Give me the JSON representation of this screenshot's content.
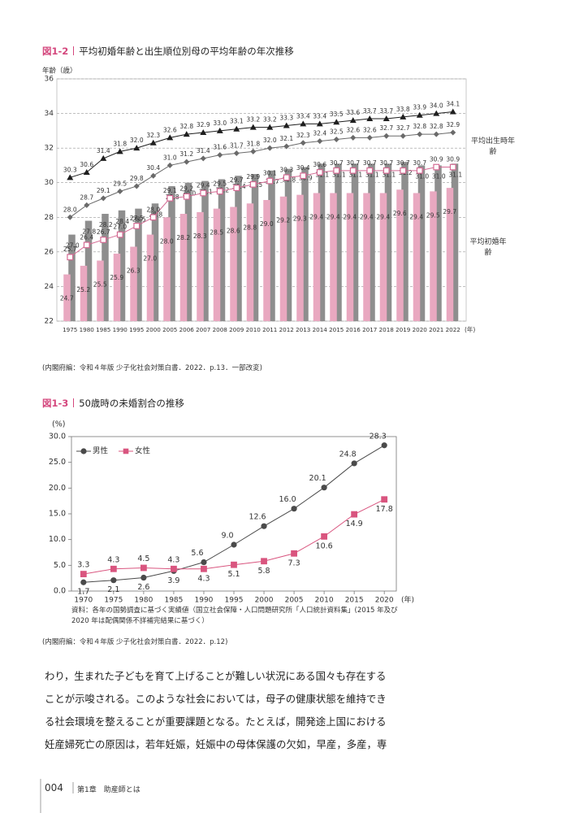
{
  "chart_data": [
    {
      "type": "combo",
      "figure": "図1-2",
      "title": "平均初婚年齢と出生順位別母の平均年齢の年次推移",
      "y_axis_title": "年齢（歳）",
      "x_unit": "(年)",
      "categories": [
        "1975",
        "1980",
        "1985",
        "1990",
        "1995",
        "2000",
        "2005",
        "2006",
        "2007",
        "2008",
        "2009",
        "2010",
        "2011",
        "2012",
        "2013",
        "2014",
        "2015",
        "2016",
        "2017",
        "2018",
        "2019",
        "2020",
        "2021",
        "2022"
      ],
      "ylim": [
        22,
        36
      ],
      "yticks": [
        22,
        24,
        26,
        28,
        30,
        32,
        34,
        36
      ],
      "grid": true,
      "annotations": [
        "平均出生時年齢",
        "平均初婚年齢"
      ],
      "series": [
        {
          "mark": "bar",
          "color": "#8e8e8e",
          "values": [
            27,
            27.8,
            28.2,
            28.4,
            28.5,
            28.8,
            29.8,
            30,
            30.1,
            30.2,
            30.4,
            30.5,
            30.7,
            30.8,
            30.9,
            31.1,
            31.1,
            31.1,
            31.1,
            31.1,
            31.2,
            31,
            31,
            31.1
          ],
          "value_labels": [
            "27.0",
            "27.8",
            "28.2",
            "28.4",
            "28.5",
            "28.8",
            "29.8",
            "30.0",
            "30.1",
            "30.2",
            "30.4",
            "30.5",
            "30.7",
            "30.8",
            "30.9",
            "31.1",
            "31.1",
            "31.1",
            "31.1",
            "31.1",
            "31.2",
            "31.0",
            "31.0",
            "31.1"
          ]
        },
        {
          "mark": "bar",
          "color": "#e9a8c0",
          "values": [
            24.7,
            25.2,
            25.5,
            25.9,
            26.3,
            27,
            28,
            28.2,
            28.3,
            28.5,
            28.6,
            28.8,
            29,
            29.2,
            29.3,
            29.4,
            29.4,
            29.4,
            29.4,
            29.4,
            29.6,
            29.4,
            29.5,
            29.7
          ],
          "value_labels": [
            "24.7",
            "25.2",
            "25.5",
            "25.9",
            "26.3",
            "27.0",
            "28.0",
            "28.2",
            "28.3",
            "28.5",
            "28.6",
            "28.8",
            "29.0",
            "29.2",
            "29.3",
            "29.4",
            "29.4",
            "29.4",
            "29.4",
            "29.4",
            "29.6",
            "29.4",
            "29.5",
            "29.7"
          ]
        },
        {
          "mark": "square",
          "color": "#d46a93",
          "values": [
            25.7,
            26.4,
            26.7,
            27,
            27.5,
            28,
            29.1,
            29.2,
            29.4,
            29.5,
            29.7,
            29.9,
            30.1,
            30.3,
            30.4,
            30.6,
            30.7,
            30.7,
            30.7,
            30.7,
            30.7,
            30.7,
            30.9,
            30.9
          ],
          "value_labels": [
            "25.7",
            "26.4",
            "26.7",
            "27.0",
            "27.5",
            "28.0",
            "29.1",
            "29.2",
            "29.4",
            "29.5",
            "29.7",
            "29.9",
            "30.1",
            "30.3",
            "30.4",
            "30.6",
            "30.7",
            "30.7",
            "30.7",
            "30.7",
            "30.7",
            "30.7",
            "30.9",
            "30.9"
          ]
        },
        {
          "mark": "diamond",
          "color": "#6a6a6a",
          "values": [
            28,
            28.7,
            29.1,
            29.5,
            29.8,
            30.4,
            31,
            31.2,
            31.4,
            31.6,
            31.7,
            31.8,
            32,
            32.1,
            32.3,
            32.4,
            32.5,
            32.6,
            32.6,
            32.7,
            32.7,
            32.8,
            32.8,
            32.9
          ],
          "value_labels": [
            "28.0",
            "28.7",
            "29.1",
            "29.5",
            "29.8",
            "30.4",
            "31.0",
            "31.2",
            "31.4",
            "31.6",
            "31.7",
            "31.8",
            "32.0",
            "32.1",
            "32.3",
            "32.4",
            "32.5",
            "32.6",
            "32.6",
            "32.7",
            "32.7",
            "32.8",
            "32.8",
            "32.9"
          ]
        },
        {
          "mark": "triangle",
          "color": "#1e1e1e",
          "values": [
            30.3,
            30.6,
            31.4,
            31.8,
            32,
            32.3,
            32.6,
            32.8,
            32.9,
            33,
            33.1,
            33.2,
            33.2,
            33.3,
            33.4,
            33.4,
            33.5,
            33.6,
            33.7,
            33.7,
            33.8,
            33.9,
            34,
            34.1
          ],
          "value_labels": [
            "30.3",
            "30.6",
            "31.4",
            "31.8",
            "32.0",
            "32.3",
            "32.6",
            "32.8",
            "32.9",
            "33.0",
            "33.1",
            "33.2",
            "33.2",
            "33.3",
            "33.4",
            "33.4",
            "33.5",
            "33.6",
            "33.7",
            "33.7",
            "33.8",
            "33.9",
            "34.0",
            "34.1"
          ]
        }
      ],
      "credit": "(内閣府編：令和４年版 少子化社会対策白書．2022．p.13．一部改変)"
    },
    {
      "type": "line",
      "figure": "図1-3",
      "title": "50歳時の未婚割合の推移",
      "y_axis_title": "(%)",
      "x_unit": "(年)",
      "x": [
        1970,
        1975,
        1980,
        1985,
        1990,
        1995,
        2000,
        2005,
        2010,
        2015,
        2020
      ],
      "xlim": [
        1968,
        2022
      ],
      "xticks": [
        1970,
        1975,
        1980,
        1985,
        1990,
        1995,
        2000,
        2005,
        2010,
        2015,
        2020
      ],
      "ylim": [
        0,
        30
      ],
      "yticks": [
        {
          "value": 0,
          "label": "0.0"
        },
        {
          "value": 5,
          "label": "5.0"
        },
        {
          "value": 10,
          "label": "10.0"
        },
        {
          "value": 15,
          "label": "15.0"
        },
        {
          "value": 20,
          "label": "20.0"
        },
        {
          "value": 25,
          "label": "25.0"
        },
        {
          "value": 30,
          "label": "30.0"
        }
      ],
      "legend": "upper-left",
      "series": [
        {
          "name": "男性",
          "mark": "circle",
          "color": "#4a4a4a",
          "values": [
            1.7,
            2.1,
            2.6,
            3.9,
            5.6,
            9,
            12.6,
            16,
            20.1,
            24.8,
            28.3
          ],
          "value_labels": [
            "1.7",
            "2.1",
            "2.6",
            "3.9",
            "5.6",
            "9.0",
            "12.6",
            "16.0",
            "20.1",
            "24.8",
            "28.3"
          ]
        },
        {
          "name": "女性",
          "mark": "square",
          "color": "#d9557f",
          "values": [
            3.3,
            4.3,
            4.5,
            4.3,
            4.3,
            5.1,
            5.8,
            7.3,
            10.6,
            14.9,
            17.8
          ],
          "value_labels": [
            "3.3",
            "4.3",
            "4.5",
            "4.3",
            "4.3",
            "5.1",
            "5.8",
            "7.3",
            "10.6",
            "14.9",
            "17.8"
          ]
        }
      ],
      "source": [
        "資料：各年の国勢調査に基づく実績値（国立社会保障・人口問題研究所「人口統計資料集」(2015 年及び",
        "2020 年は配偶関係不詳補完結果に基づく）"
      ],
      "credit": "(内閣府編：令和４年版 少子化社会対策白書．2022．p.12)"
    }
  ],
  "body_text": [
    "わり，生まれた子どもを育て上げることが難しい状況にある国々も存在する",
    "ことが示唆される。このような社会においては，母子の健康状態を維持でき",
    "る社会環境を整えることが重要課題となる。たとえば，開発途上国における",
    "妊産婦死亡の原因は，若年妊娠，妊娠中の母体保護の欠如，早産，多産，専"
  ],
  "footer": {
    "page": "004",
    "chapter": "第1章　助産師とは"
  }
}
